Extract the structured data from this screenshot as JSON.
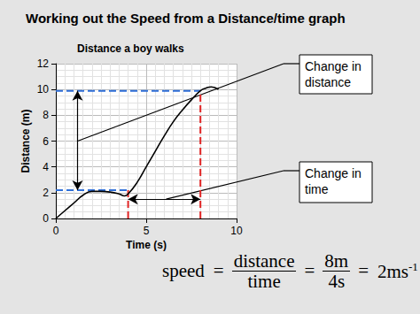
{
  "chart_data": {
    "type": "line",
    "slide_title": "Working out the Speed from a Distance/time graph",
    "title": "Distance a boy walks",
    "x_label": "Time (s)",
    "y_label": "Distance (m)",
    "x": [
      0,
      0.5,
      1,
      1.5,
      2,
      2.5,
      3,
      3.5,
      3.8,
      4,
      4.5,
      5,
      5.5,
      6,
      6.5,
      7,
      7.5,
      8,
      8.3,
      8.6,
      9
    ],
    "values": [
      0,
      0.6,
      1.2,
      1.8,
      2.1,
      2.1,
      2.05,
      1.9,
      1.75,
      1.9,
      2.8,
      4.0,
      5.2,
      6.4,
      7.5,
      8.4,
      9.2,
      9.9,
      10.1,
      10.2,
      10.0
    ],
    "color": "#000000",
    "xlim": [
      0,
      10
    ],
    "xticks": [
      0,
      5,
      10
    ],
    "ylim": [
      0,
      12
    ],
    "yticks": [
      0,
      2,
      4,
      6,
      8,
      10,
      12
    ],
    "grid": true,
    "annotations": {
      "distance_guides": {
        "color": "#2f6fd8",
        "lines": [
          {
            "y": 9.9,
            "x_from": 0,
            "x_to": 8
          },
          {
            "y": 2.2,
            "x_from": 0,
            "x_to": 4
          }
        ]
      },
      "time_guides": {
        "color": "#e02424",
        "lines": [
          {
            "x": 4,
            "y_from": 0,
            "y_to": 2.2
          },
          {
            "x": 8,
            "y_from": 0,
            "y_to": 9.9
          }
        ]
      },
      "distance_arrow": {
        "x": 1.2,
        "y_from": 2.2,
        "y_to": 9.9
      },
      "time_arrow": {
        "y": 1.5,
        "x_from": 4,
        "x_to": 8
      },
      "callouts": [
        {
          "text": "Change in distance",
          "points_to": [
            1.2,
            6
          ]
        },
        {
          "text": "Change in time",
          "points_to": [
            6.1,
            1.5
          ]
        }
      ]
    },
    "formula": [
      "speed",
      "=",
      {
        "num": "distance",
        "den": "time"
      },
      "=",
      {
        "num": "8m",
        "den": "4s"
      },
      "=",
      {
        "base": "2ms",
        "sup": "-1"
      }
    ]
  }
}
